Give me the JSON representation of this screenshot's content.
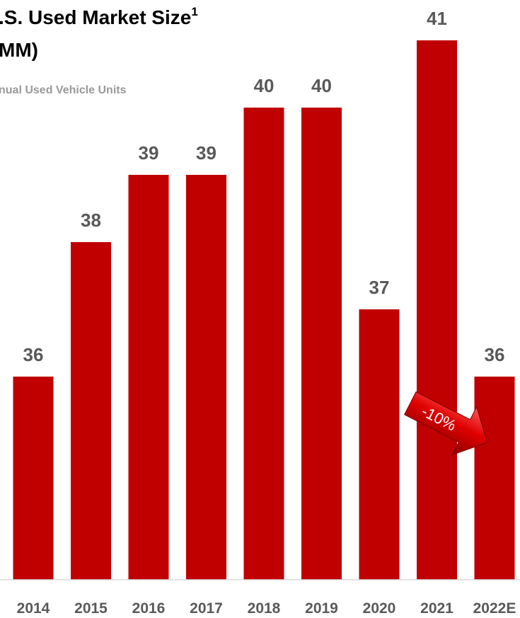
{
  "chart_data": {
    "type": "bar",
    "title_line1": ".S. Used Market Size",
    "title_sup": "1",
    "title_line2": "MM)",
    "subtitle": "nual Used Vehicle Units",
    "categories": [
      "2014",
      "2015",
      "2016",
      "2017",
      "2018",
      "2019",
      "2020",
      "2021",
      "2022E"
    ],
    "values": [
      36,
      38,
      39,
      39,
      40,
      40,
      37,
      41,
      36
    ],
    "bar_color": "#c00000",
    "label_color": "#595959",
    "annotation": {
      "text": "-10%",
      "from_category": "2021",
      "to_category": "2022E",
      "shape": "arrow-down-right"
    },
    "xlabel": "",
    "ylabel": ""
  }
}
